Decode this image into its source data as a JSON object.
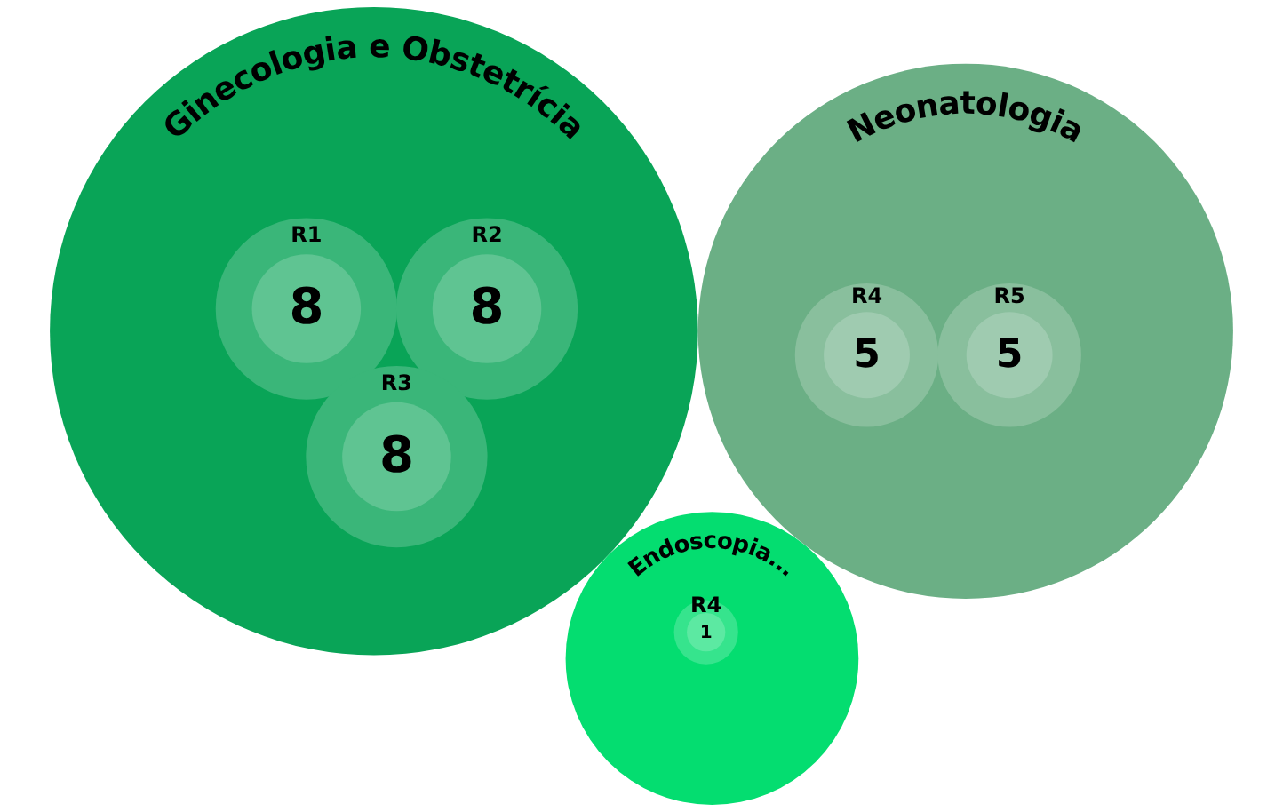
{
  "chart_data": {
    "type": "other",
    "data_labels": true,
    "categories": [
      "R1",
      "R2",
      "R3",
      "R4",
      "R5"
    ],
    "series": [
      {
        "name": "Ginecologia e Obstetrícia",
        "color": "#5fc492",
        "values": [
          8,
          8,
          8,
          null,
          null
        ]
      },
      {
        "name": "Neonatologia",
        "color": "#9fcbb0",
        "values": [
          null,
          null,
          null,
          5,
          5
        ]
      },
      {
        "name": "Endoscopia...",
        "color": "#5ce9a2",
        "values": [
          null,
          null,
          null,
          1,
          null
        ]
      }
    ]
  }
}
